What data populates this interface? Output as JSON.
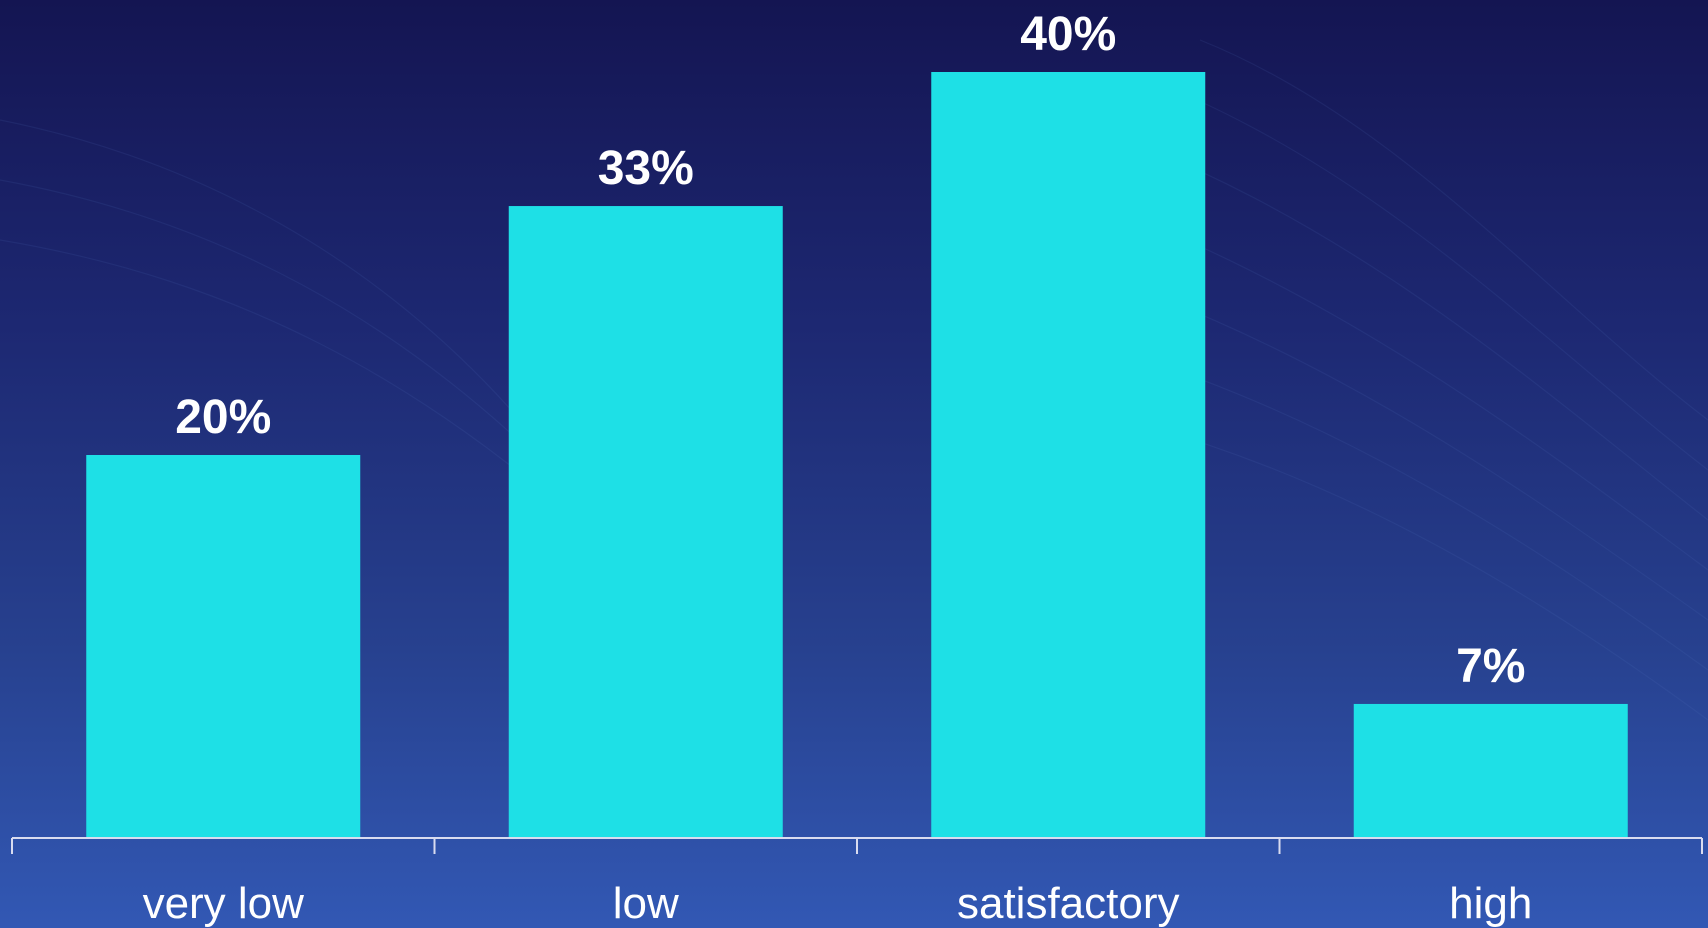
{
  "chart_data": {
    "type": "bar",
    "categories": [
      "very low",
      "low",
      "satisfactory",
      "high"
    ],
    "values": [
      20,
      33,
      40,
      7
    ],
    "data_labels": [
      "20%",
      "33%",
      "40%",
      "7%"
    ],
    "unit": "%",
    "ylim": [
      0,
      40
    ],
    "grid": false,
    "legend": "none"
  },
  "colors": {
    "bar": "#1ee0e6",
    "axis": "#d9dcf0",
    "text": "#ffffff"
  }
}
